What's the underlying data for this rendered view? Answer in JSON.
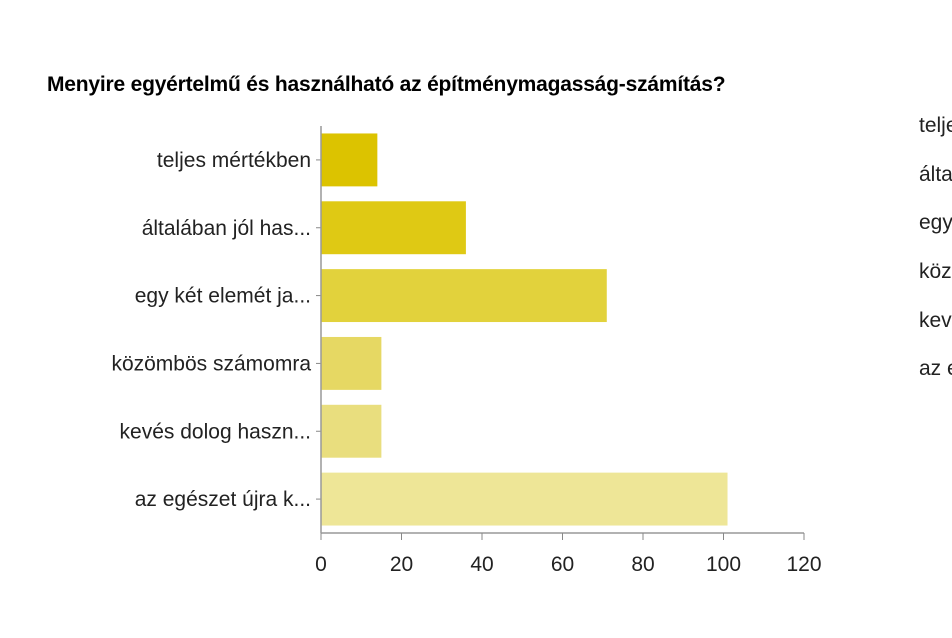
{
  "chart_data": {
    "type": "bar",
    "orientation": "horizontal",
    "title": "Menyire egyértelmű és használható az építménymagasság-számítás?",
    "categories": [
      "teljes mértékben",
      "általában jól has...",
      "egy két elemét ja...",
      "közömbös számomra",
      "kevés dolog haszn...",
      "az egészet újra k..."
    ],
    "values": [
      14,
      36,
      71,
      15,
      15,
      101
    ],
    "bar_colors": [
      "#dcc300",
      "#dfc914",
      "#e2d23c",
      "#e6d863",
      "#e9de7e",
      "#eee697"
    ],
    "xlim": [
      0,
      120
    ],
    "xticks": [
      0,
      20,
      40,
      60,
      80,
      100,
      120
    ],
    "grid": false,
    "legend_entries": [
      "teljes mértékben",
      "általában jól használható",
      "egy két elemét javítani kellene",
      "közömbös számomra",
      "kevés dolog használható",
      "az egészet újra kellene gondolni"
    ],
    "legend_placement": "right"
  }
}
